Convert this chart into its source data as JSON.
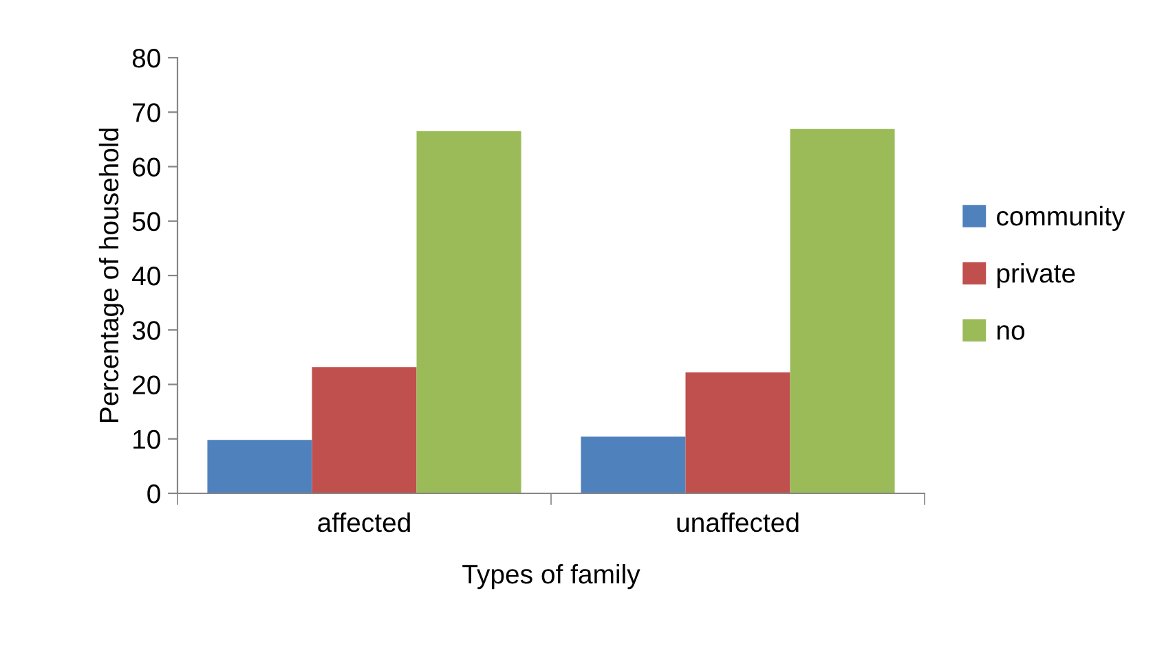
{
  "chart_data": {
    "type": "bar",
    "xlabel": "Types of family",
    "ylabel": "Percentage of household",
    "categories": [
      "affected",
      "unaffected"
    ],
    "series": [
      {
        "name": "community",
        "color": "#4f81bd",
        "values": [
          9.8,
          10.4
        ]
      },
      {
        "name": "private",
        "color": "#c0504d",
        "values": [
          23.2,
          22.2
        ]
      },
      {
        "name": "no",
        "color": "#9bbb59",
        "values": [
          66.5,
          66.9
        ]
      }
    ],
    "ylim": [
      0,
      80
    ],
    "yticks": [
      0,
      10,
      20,
      30,
      40,
      50,
      60,
      70,
      80
    ],
    "grid": false,
    "legend": "right"
  }
}
